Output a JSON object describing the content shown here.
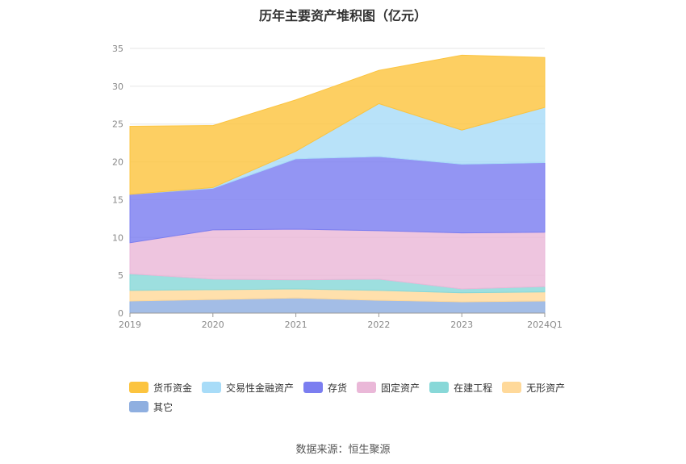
{
  "chart_data": {
    "type": "area",
    "stacked": true,
    "title": "历年主要资产堆积图（亿元）",
    "categories": [
      "2019",
      "2020",
      "2021",
      "2022",
      "2023",
      "2024Q1"
    ],
    "ylim": [
      0,
      35
    ],
    "yticks": [
      0,
      5,
      10,
      15,
      20,
      25,
      30,
      35
    ],
    "grid": true,
    "legend_position": "bottom",
    "series": [
      {
        "name": "其它",
        "color": "#8fafe0",
        "values": [
          1.6,
          1.8,
          2.0,
          1.7,
          1.5,
          1.6
        ]
      },
      {
        "name": "无形资产",
        "color": "#ffd99a",
        "values": [
          1.4,
          1.3,
          1.2,
          1.3,
          1.2,
          1.2
        ]
      },
      {
        "name": "在建工程",
        "color": "#88d8d8",
        "values": [
          2.2,
          1.4,
          1.2,
          1.5,
          0.5,
          0.7
        ]
      },
      {
        "name": "固定资产",
        "color": "#eab8d8",
        "values": [
          4.1,
          6.5,
          6.7,
          6.4,
          7.4,
          7.2
        ]
      },
      {
        "name": "存货",
        "color": "#7b7ef0",
        "values": [
          6.4,
          5.5,
          9.3,
          9.8,
          9.1,
          9.2
        ]
      },
      {
        "name": "交易性金融资产",
        "color": "#a8dcf8",
        "values": [
          0.0,
          0.1,
          1.0,
          7.0,
          4.5,
          7.3
        ]
      },
      {
        "name": "货币资金",
        "color": "#fcc43f",
        "values": [
          9.0,
          8.2,
          6.8,
          4.4,
          9.9,
          6.6
        ]
      }
    ],
    "legend_order": [
      "货币资金",
      "交易性金融资产",
      "存货",
      "固定资产",
      "在建工程",
      "无形资产",
      "其它"
    ]
  },
  "source": "数据来源：恒生聚源"
}
